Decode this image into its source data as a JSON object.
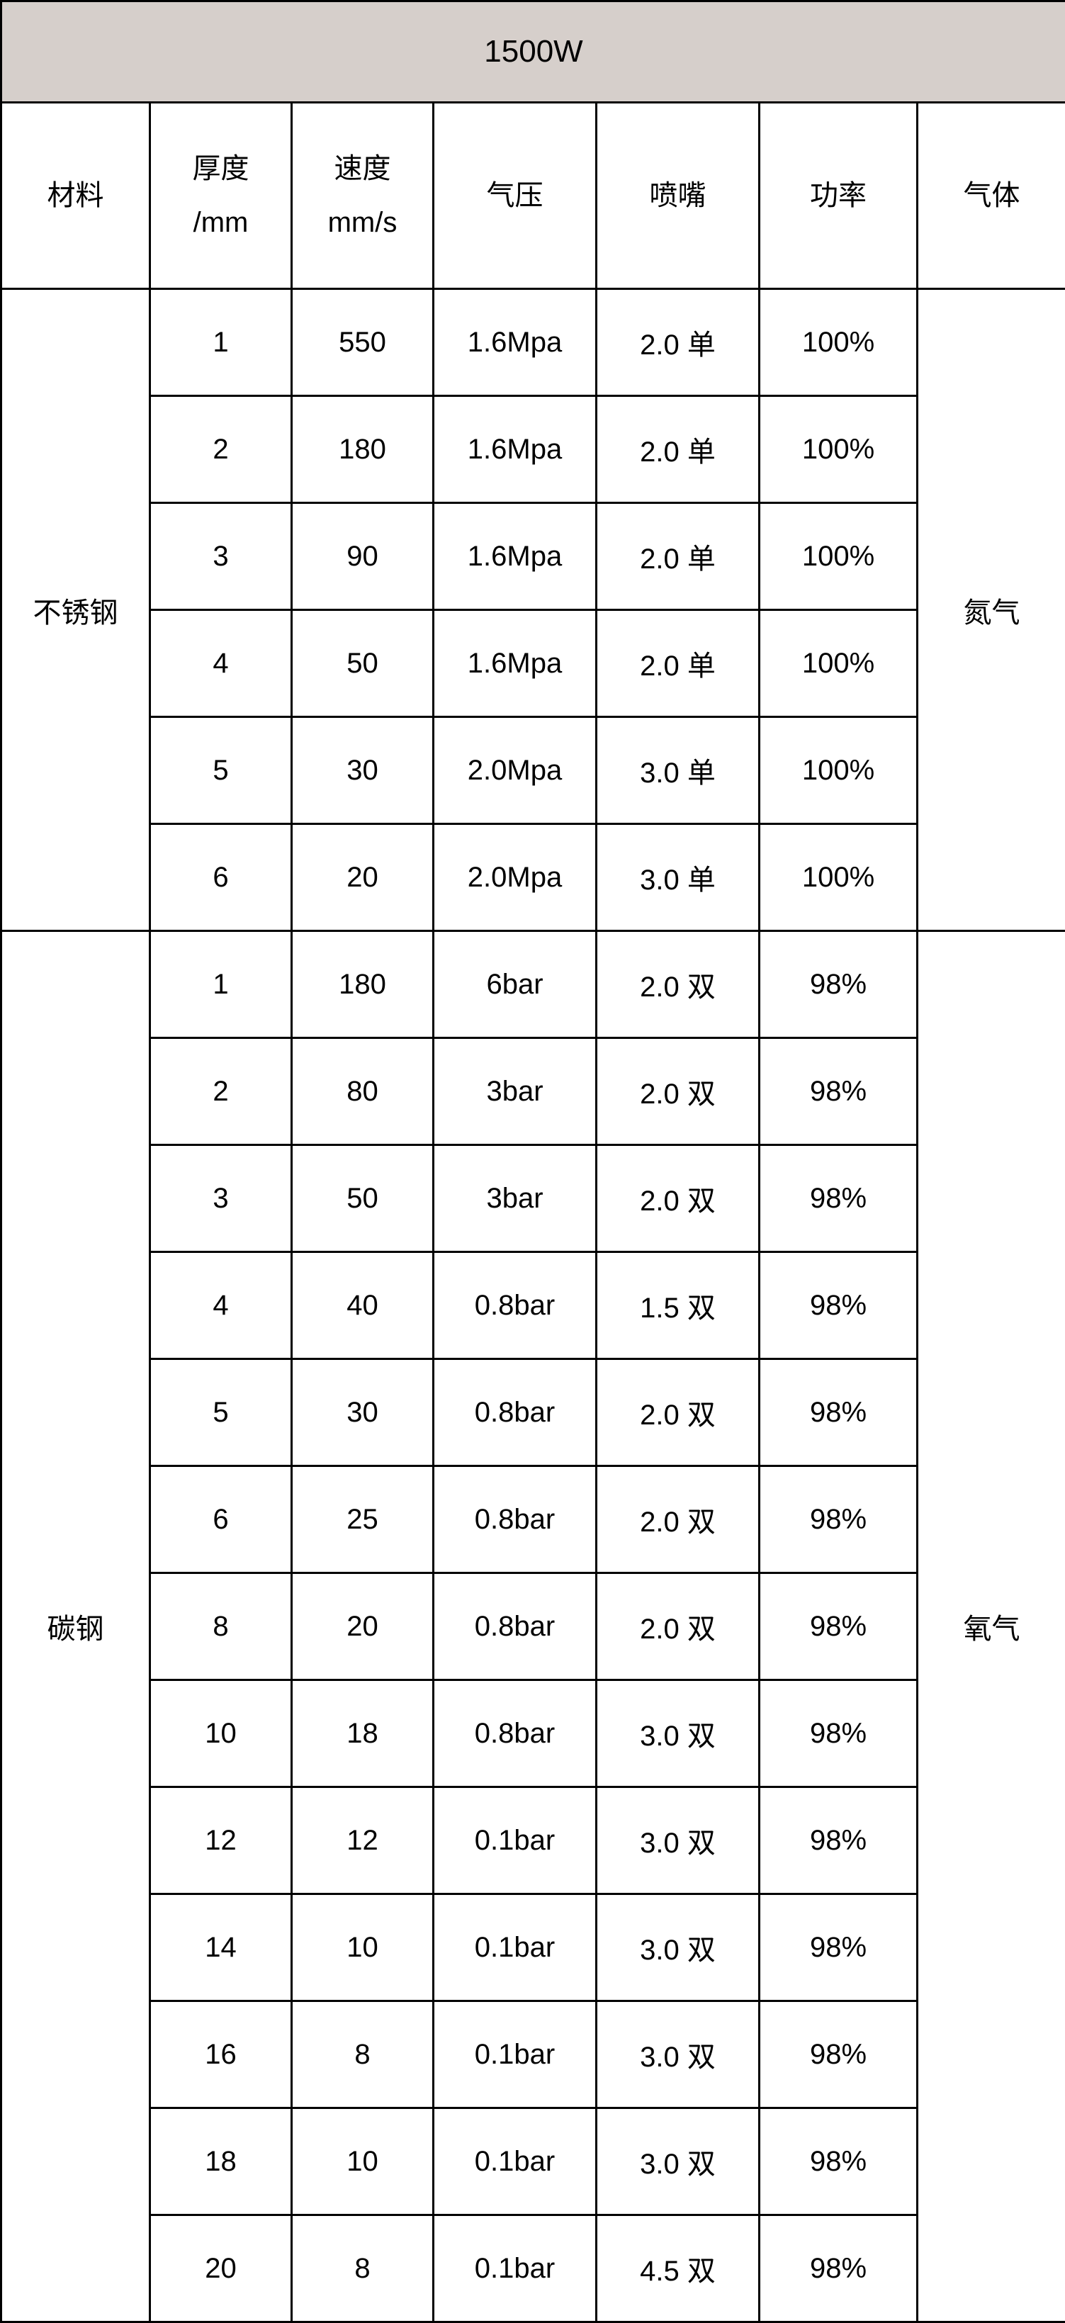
{
  "table": {
    "title": "1500W",
    "background_title": "#d6cfcb",
    "border_color": "#000000",
    "headers": {
      "material": "材料",
      "thickness_line1": "厚度",
      "thickness_line2": "/mm",
      "speed_line1": "速度",
      "speed_line2": "mm/s",
      "pressure": "气压",
      "nozzle": "喷嘴",
      "power": "功率",
      "gas": "气体"
    },
    "groups": [
      {
        "material": "不锈钢",
        "gas": "氮气",
        "rows": [
          {
            "thickness": "1",
            "speed": "550",
            "pressure": "1.6Mpa",
            "nozzle": "2.0  单",
            "power": "100%"
          },
          {
            "thickness": "2",
            "speed": "180",
            "pressure": "1.6Mpa",
            "nozzle": "2.0  单",
            "power": "100%"
          },
          {
            "thickness": "3",
            "speed": "90",
            "pressure": "1.6Mpa",
            "nozzle": "2.0  单",
            "power": "100%"
          },
          {
            "thickness": "4",
            "speed": "50",
            "pressure": "1.6Mpa",
            "nozzle": "2.0  单",
            "power": "100%"
          },
          {
            "thickness": "5",
            "speed": "30",
            "pressure": "2.0Mpa",
            "nozzle": "3.0  单",
            "power": "100%"
          },
          {
            "thickness": "6",
            "speed": "20",
            "pressure": "2.0Mpa",
            "nozzle": "3.0  单",
            "power": "100%"
          }
        ]
      },
      {
        "material": "碳钢",
        "gas": "氧气",
        "rows": [
          {
            "thickness": "1",
            "speed": "180",
            "pressure": "6bar",
            "nozzle": "2.0  双",
            "power": "98%"
          },
          {
            "thickness": "2",
            "speed": "80",
            "pressure": "3bar",
            "nozzle": "2.0  双",
            "power": "98%"
          },
          {
            "thickness": "3",
            "speed": "50",
            "pressure": "3bar",
            "nozzle": "2.0  双",
            "power": "98%"
          },
          {
            "thickness": "4",
            "speed": "40",
            "pressure": "0.8bar",
            "nozzle": "1.5  双",
            "power": "98%"
          },
          {
            "thickness": "5",
            "speed": "30",
            "pressure": "0.8bar",
            "nozzle": "2.0  双",
            "power": "98%"
          },
          {
            "thickness": "6",
            "speed": "25",
            "pressure": "0.8bar",
            "nozzle": "2.0  双",
            "power": "98%"
          },
          {
            "thickness": "8",
            "speed": "20",
            "pressure": "0.8bar",
            "nozzle": "2.0  双",
            "power": "98%"
          },
          {
            "thickness": "10",
            "speed": "18",
            "pressure": "0.8bar",
            "nozzle": "3.0  双",
            "power": "98%"
          },
          {
            "thickness": "12",
            "speed": "12",
            "pressure": "0.1bar",
            "nozzle": "3.0  双",
            "power": "98%"
          },
          {
            "thickness": "14",
            "speed": "10",
            "pressure": "0.1bar",
            "nozzle": "3.0  双",
            "power": "98%"
          },
          {
            "thickness": "16",
            "speed": "8",
            "pressure": "0.1bar",
            "nozzle": "3.0  双",
            "power": "98%"
          },
          {
            "thickness": "18",
            "speed": "10",
            "pressure": "0.1bar",
            "nozzle": "3.0  双",
            "power": "98%"
          },
          {
            "thickness": "20",
            "speed": "8",
            "pressure": "0.1bar",
            "nozzle": "4.5  双",
            "power": "98%"
          }
        ]
      }
    ]
  }
}
